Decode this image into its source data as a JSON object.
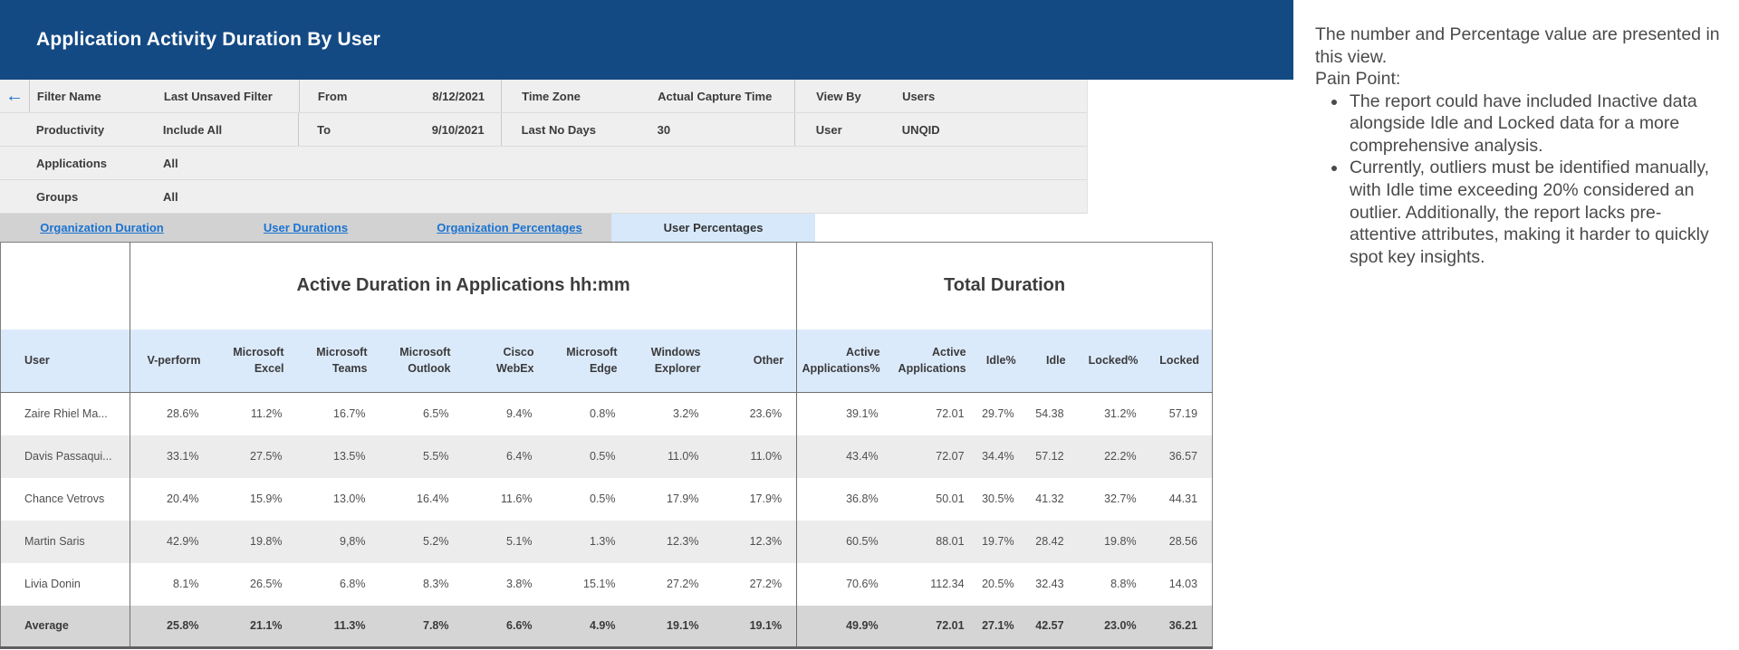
{
  "header": {
    "title": "Application Activity Duration By User"
  },
  "icons": {
    "back_arrow": "←"
  },
  "colors": {
    "header_blue": "#144a84",
    "link_blue": "#1a73d2",
    "active_tab_bg": "#d6e8fa",
    "subheader_bg": "#dbeafb"
  },
  "filters": {
    "rows": [
      {
        "cells": [
          {
            "label": "Filter Name",
            "value": "Last Unsaved Filter"
          },
          {
            "label": "From",
            "value": "8/12/2021"
          },
          {
            "label": "Time Zone",
            "value": "Actual Capture Time"
          },
          {
            "label": "View By",
            "value": "Users"
          }
        ]
      },
      {
        "cells": [
          {
            "label": "Productivity",
            "value": "Include All"
          },
          {
            "label": "To",
            "value": "9/10/2021"
          },
          {
            "label": "Last No Days",
            "value": "30"
          },
          {
            "label": "User",
            "value": "UNQID"
          }
        ]
      },
      {
        "cells": [
          {
            "label": "Applications",
            "value": "All"
          }
        ]
      },
      {
        "cells": [
          {
            "label": "Groups",
            "value": "All"
          }
        ]
      }
    ]
  },
  "tabs": [
    {
      "label": "Organization Duration",
      "active": false
    },
    {
      "label": "User Durations",
      "active": false
    },
    {
      "label": "Organization Percentages",
      "active": false
    },
    {
      "label": "User Percentages",
      "active": true
    }
  ],
  "table": {
    "groups": {
      "apps": "Active Duration in Applications hh:mm",
      "total": "Total Duration"
    },
    "columns": [
      "User",
      "V-perform",
      "Microsoft Excel",
      "Microsoft Teams",
      "Microsoft Outlook",
      "Cisco WebEx",
      "Microsoft Edge",
      "Windows Explorer",
      "Other",
      "Active Applications%",
      "Active Applications",
      "Idle%",
      "Idle",
      "Locked%",
      "Locked"
    ],
    "rows": [
      {
        "user": "Zaire Rhiel Ma...",
        "is_average": false,
        "values": [
          "28.6%",
          "11.2%",
          "16.7%",
          "6.5%",
          "9.4%",
          "0.8%",
          "3.2%",
          "23.6%",
          "39.1%",
          "72.01",
          "29.7%",
          "54.38",
          "31.2%",
          "57.19"
        ]
      },
      {
        "user": "Davis Passaqui...",
        "is_average": false,
        "values": [
          "33.1%",
          "27.5%",
          "13.5%",
          "5.5%",
          "6.4%",
          "0.5%",
          "11.0%",
          "11.0%",
          "43.4%",
          "72.07",
          "34.4%",
          "57.12",
          "22.2%",
          "36.57"
        ]
      },
      {
        "user": "Chance Vetrovs",
        "is_average": false,
        "values": [
          "20.4%",
          "15.9%",
          "13.0%",
          "16.4%",
          "11.6%",
          "0.5%",
          "17.9%",
          "17.9%",
          "36.8%",
          "50.01",
          "30.5%",
          "41.32",
          "32.7%",
          "44.31"
        ]
      },
      {
        "user": "Martin Saris",
        "is_average": false,
        "values": [
          "42.9%",
          "19.8%",
          "9,8%",
          "5.2%",
          "5.1%",
          "1.3%",
          "12.3%",
          "12.3%",
          "60.5%",
          "88.01",
          "19.7%",
          "28.42",
          "19.8%",
          "28.56"
        ]
      },
      {
        "user": "Livia Donin",
        "is_average": false,
        "values": [
          "8.1%",
          "26.5%",
          "6.8%",
          "8.3%",
          "3.8%",
          "15.1%",
          "27.2%",
          "27.2%",
          "70.6%",
          "112.34",
          "20.5%",
          "32.43",
          "8.8%",
          "14.03"
        ]
      },
      {
        "user": "Average",
        "is_average": true,
        "values": [
          "25.8%",
          "21.1%",
          "11.3%",
          "7.8%",
          "6.6%",
          "4.9%",
          "19.1%",
          "19.1%",
          "49.9%",
          "72.01",
          "27.1%",
          "42.57",
          "23.0%",
          "36.21"
        ]
      }
    ]
  },
  "annotation": {
    "intro": "The number and Percentage value are presented in this view.",
    "pain_point_label": "Pain Point:",
    "bullets": [
      "The report could have included Inactive data alongside Idle and Locked data for a more comprehensive analysis.",
      "Currently, outliers must be identified manually, with Idle time exceeding 20% considered an outlier. Additionally, the report lacks pre-attentive attributes, making it harder to quickly spot key insights."
    ]
  }
}
